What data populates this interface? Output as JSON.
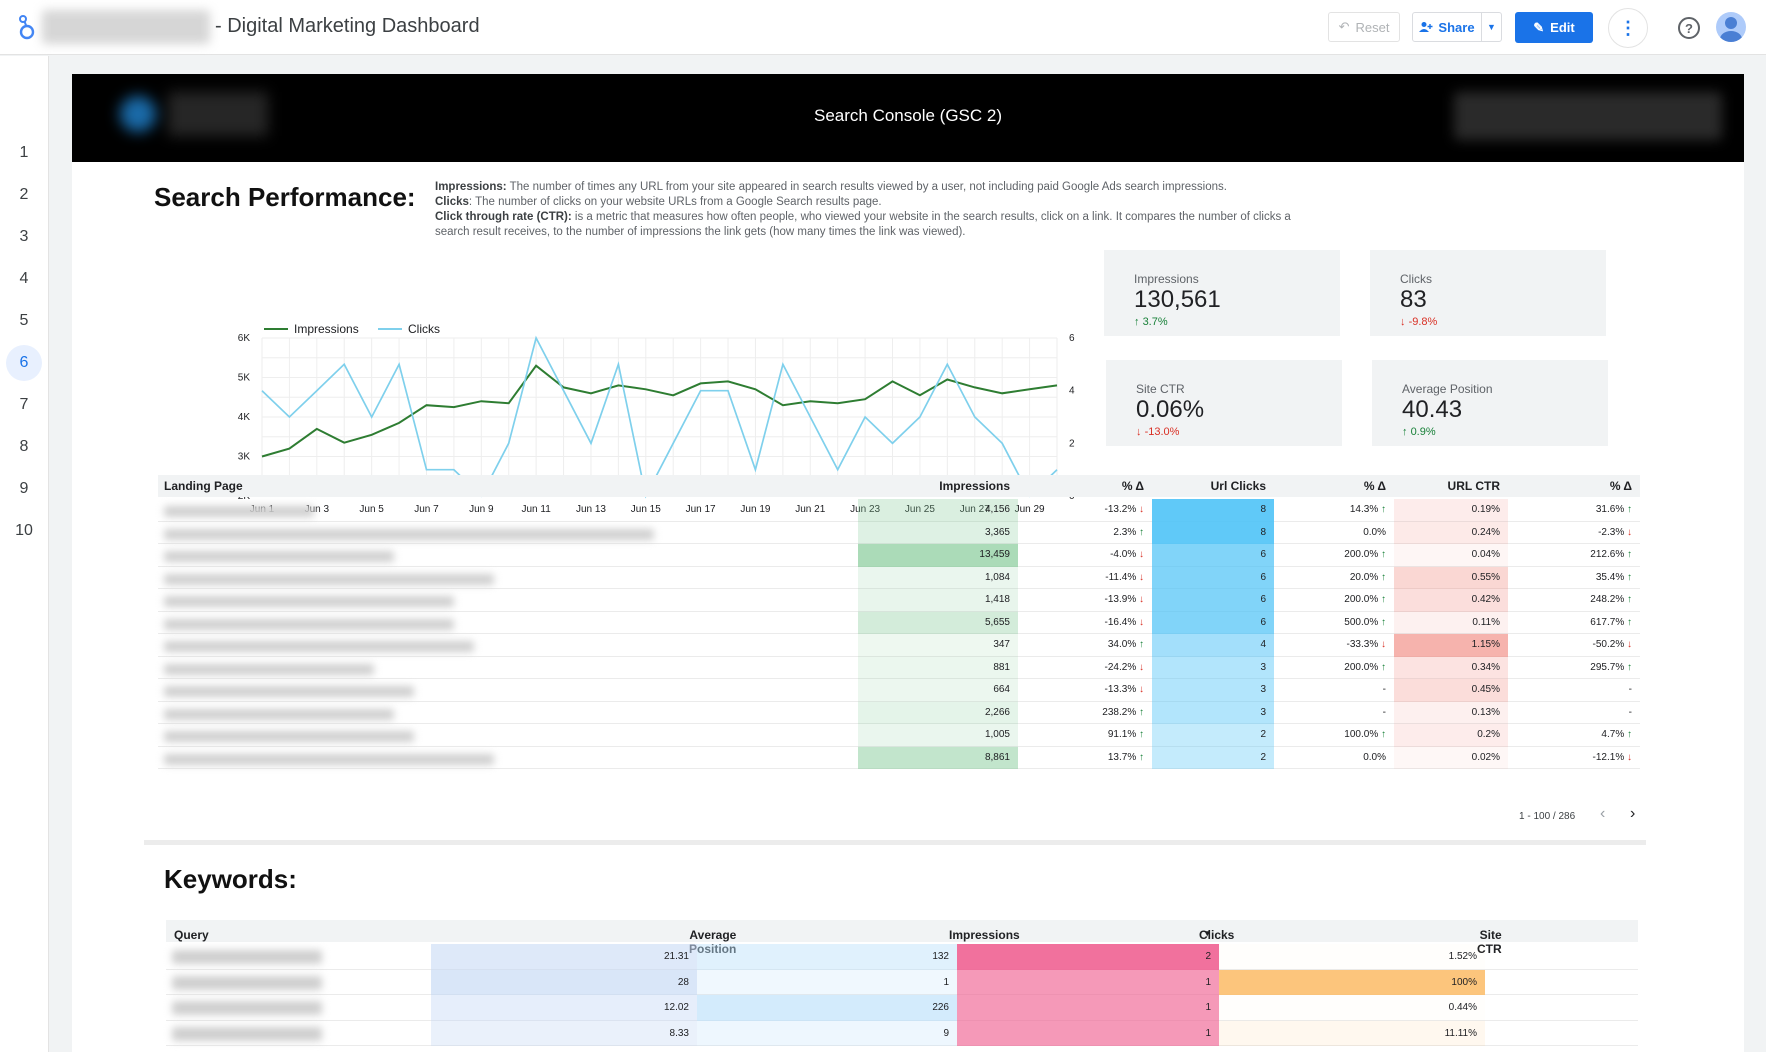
{
  "topbar": {
    "title": "- Digital Marketing Dashboard",
    "reset_label": "Reset",
    "share_label": "Share",
    "edit_label": "Edit"
  },
  "nav": {
    "pages": [
      "1",
      "2",
      "3",
      "4",
      "5",
      "6",
      "7",
      "8",
      "9",
      "10"
    ],
    "active_page": "6"
  },
  "report": {
    "header_title": "Search Console (GSC 2)",
    "section_title": "Search Performance:",
    "definitions": [
      {
        "term": "Impressions:",
        "text": " The number of times any URL from your site appeared in search results viewed by a user, not including paid Google Ads search impressions."
      },
      {
        "term": "Clicks",
        "text": ": The number of clicks on your website URLs from a Google Search results page."
      },
      {
        "term": "Click through rate (CTR):",
        "text": " is a metric that measures how often people, who viewed your website in the search results, click on a link. It compares the number of clicks a search result receives, to the number of impressions the link gets (how many times the link was viewed)."
      }
    ]
  },
  "chart_data": {
    "type": "line",
    "legend_position": "top-left",
    "grid": true,
    "categories": [
      "Jun 1",
      "Jun 2",
      "Jun 3",
      "Jun 4",
      "Jun 5",
      "Jun 6",
      "Jun 7",
      "Jun 8",
      "Jun 9",
      "Jun 10",
      "Jun 11",
      "Jun 12",
      "Jun 13",
      "Jun 14",
      "Jun 15",
      "Jun 16",
      "Jun 17",
      "Jun 18",
      "Jun 19",
      "Jun 20",
      "Jun 21",
      "Jun 22",
      "Jun 23",
      "Jun 24",
      "Jun 25",
      "Jun 26",
      "Jun 27",
      "Jun 28",
      "Jun 29",
      "Jun 30"
    ],
    "x_tick_labels": [
      "Jun 1",
      "Jun 3",
      "Jun 5",
      "Jun 7",
      "Jun 9",
      "Jun 11",
      "Jun 13",
      "Jun 15",
      "Jun 17",
      "Jun 19",
      "Jun 21",
      "Jun 23",
      "Jun 25",
      "Jun 27",
      "Jun 29"
    ],
    "y_left": {
      "ticks": [
        "2K",
        "3K",
        "4K",
        "5K",
        "6K"
      ],
      "range": [
        2000,
        6000
      ]
    },
    "y_right": {
      "ticks": [
        "0",
        "2",
        "4",
        "6"
      ],
      "range": [
        0,
        6
      ]
    },
    "series": [
      {
        "name": "Impressions",
        "axis": "left",
        "color": "#2e7d32",
        "values": [
          3000,
          3200,
          3700,
          3350,
          3550,
          3850,
          4300,
          4250,
          4400,
          4350,
          5300,
          4750,
          4600,
          4800,
          4700,
          4550,
          4850,
          4900,
          4700,
          4300,
          4400,
          4350,
          4450,
          4900,
          4550,
          4950,
          4750,
          4600,
          4700,
          4800
        ]
      },
      {
        "name": "Clicks",
        "axis": "right",
        "color": "#7fd0ec",
        "values": [
          4,
          3,
          4,
          5,
          3,
          5,
          1,
          1,
          0,
          2,
          6,
          4,
          2,
          5,
          0,
          2,
          4,
          4,
          1,
          5,
          3,
          1,
          3,
          2,
          3,
          5,
          3,
          2,
          0,
          1
        ]
      }
    ]
  },
  "kpis": [
    {
      "label": "Impressions",
      "value": "130,561",
      "delta": "3.7%",
      "dir": "up"
    },
    {
      "label": "Clicks",
      "value": "83",
      "delta": "-9.8%",
      "dir": "down"
    },
    {
      "label": "Site CTR",
      "value": "0.06%",
      "delta": "-13.0%",
      "dir": "down"
    },
    {
      "label": "Average Position",
      "value": "40.43",
      "delta": "0.9%",
      "dir": "up"
    }
  ],
  "landing_table": {
    "headers": [
      "Landing Page",
      "Impressions",
      "% Δ",
      "Url Clicks",
      "% Δ",
      "URL CTR",
      "% Δ"
    ],
    "rows": [
      {
        "impressions": "4,156",
        "imp_d": "-13.2%",
        "imp_dir": "down",
        "imp_level": 0.31,
        "clicks": "8",
        "clk_d": "14.3%",
        "clk_dir": "up",
        "clk_level": 1.0,
        "ctr": "0.19%",
        "ctr_d": "31.6%",
        "ctr_dir": "up",
        "ctr_level": 0.17
      },
      {
        "impressions": "3,365",
        "imp_d": "2.3%",
        "imp_dir": "up",
        "imp_level": 0.25,
        "clicks": "8",
        "clk_d": "0.0%",
        "clk_dir": "",
        "clk_level": 1.0,
        "ctr": "0.24%",
        "ctr_d": "-2.3%",
        "ctr_dir": "down",
        "ctr_level": 0.21
      },
      {
        "impressions": "13,459",
        "imp_d": "-4.0%",
        "imp_dir": "down",
        "imp_level": 1.0,
        "clicks": "6",
        "clk_d": "200.0%",
        "clk_dir": "up",
        "clk_level": 0.75,
        "ctr": "0.04%",
        "ctr_d": "212.6%",
        "ctr_dir": "up",
        "ctr_level": 0.03
      },
      {
        "impressions": "1,084",
        "imp_d": "-11.4%",
        "imp_dir": "down",
        "imp_level": 0.08,
        "clicks": "6",
        "clk_d": "20.0%",
        "clk_dir": "up",
        "clk_level": 0.75,
        "ctr": "0.55%",
        "ctr_d": "35.4%",
        "ctr_dir": "up",
        "ctr_level": 0.48
      },
      {
        "impressions": "1,418",
        "imp_d": "-13.9%",
        "imp_dir": "down",
        "imp_level": 0.11,
        "clicks": "6",
        "clk_d": "200.0%",
        "clk_dir": "up",
        "clk_level": 0.75,
        "ctr": "0.42%",
        "ctr_d": "248.2%",
        "ctr_dir": "up",
        "ctr_level": 0.37
      },
      {
        "impressions": "5,655",
        "imp_d": "-16.4%",
        "imp_dir": "down",
        "imp_level": 0.42,
        "clicks": "6",
        "clk_d": "500.0%",
        "clk_dir": "up",
        "clk_level": 0.75,
        "ctr": "0.11%",
        "ctr_d": "617.7%",
        "ctr_dir": "up",
        "ctr_level": 0.1
      },
      {
        "impressions": "347",
        "imp_d": "34.0%",
        "imp_dir": "up",
        "imp_level": 0.03,
        "clicks": "4",
        "clk_d": "-33.3%",
        "clk_dir": "down",
        "clk_level": 0.5,
        "ctr": "1.15%",
        "ctr_d": "-50.2%",
        "ctr_dir": "down",
        "ctr_level": 1.0
      },
      {
        "impressions": "881",
        "imp_d": "-24.2%",
        "imp_dir": "down",
        "imp_level": 0.07,
        "clicks": "3",
        "clk_d": "200.0%",
        "clk_dir": "up",
        "clk_level": 0.38,
        "ctr": "0.34%",
        "ctr_d": "295.7%",
        "ctr_dir": "up",
        "ctr_level": 0.3
      },
      {
        "impressions": "664",
        "imp_d": "-13.3%",
        "imp_dir": "down",
        "imp_level": 0.05,
        "clicks": "3",
        "clk_d": "-",
        "clk_dir": "",
        "clk_level": 0.38,
        "ctr": "0.45%",
        "ctr_d": "-",
        "ctr_dir": "",
        "ctr_level": 0.39
      },
      {
        "impressions": "2,266",
        "imp_d": "238.2%",
        "imp_dir": "up",
        "imp_level": 0.17,
        "clicks": "3",
        "clk_d": "-",
        "clk_dir": "",
        "clk_level": 0.38,
        "ctr": "0.13%",
        "ctr_d": "-",
        "ctr_dir": "",
        "ctr_level": 0.11
      },
      {
        "impressions": "1,005",
        "imp_d": "91.1%",
        "imp_dir": "up",
        "imp_level": 0.08,
        "clicks": "2",
        "clk_d": "100.0%",
        "clk_dir": "up",
        "clk_level": 0.25,
        "ctr": "0.2%",
        "ctr_d": "4.7%",
        "ctr_dir": "up",
        "ctr_level": 0.17
      },
      {
        "impressions": "8,861",
        "imp_d": "13.7%",
        "imp_dir": "up",
        "imp_level": 0.66,
        "clicks": "2",
        "clk_d": "0.0%",
        "clk_dir": "",
        "clk_level": 0.25,
        "ctr": "0.02%",
        "ctr_d": "-12.1%",
        "ctr_dir": "down",
        "ctr_level": 0.02
      }
    ],
    "pager": "1 - 100 / 286"
  },
  "keywords": {
    "title": "Keywords:",
    "headers": [
      "Query",
      "Average Position",
      "Impressions",
      "Clicks",
      "Site CTR"
    ],
    "sort_indicator": "▾",
    "rows": [
      {
        "pos": "21.31",
        "pos_level": 0.8,
        "imp": "132",
        "imp_level": 0.5,
        "clicks": "2",
        "clk_level": 1.0,
        "ctr": "1.52%",
        "ctr_level": 0.0
      },
      {
        "pos": "28",
        "pos_level": 1.0,
        "imp": "1",
        "imp_level": 0.05,
        "clicks": "1",
        "clk_level": 0.5,
        "ctr": "100%",
        "ctr_level": 1.0
      },
      {
        "pos": "12.02",
        "pos_level": 0.45,
        "imp": "226",
        "imp_level": 0.9,
        "clicks": "1",
        "clk_level": 0.5,
        "ctr": "0.44%",
        "ctr_level": 0.0
      },
      {
        "pos": "8.33",
        "pos_level": 0.3,
        "imp": "9",
        "imp_level": 0.1,
        "clicks": "1",
        "clk_level": 0.5,
        "ctr": "11.11%",
        "ctr_level": 0.1
      }
    ]
  },
  "colors": {
    "accent": "#1a73e8",
    "impressions_heat": "#81c995",
    "clicks_heat": "#4fc3f7",
    "ctr_heat": "#f28b82",
    "kw_clicks_heat": "#f06292",
    "kw_ctr_heat": "#fbbc68"
  }
}
